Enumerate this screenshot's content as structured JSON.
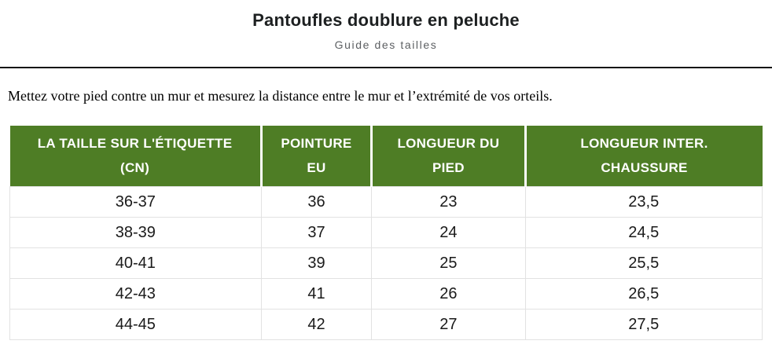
{
  "header": {
    "title": "Pantoufles doublure en peluche",
    "subtitle": "Guide des tailles"
  },
  "instruction": "Mettez votre pied contre un mur et mesurez la distance entre le mur et l’extrémité de vos orteils.",
  "table": {
    "headers": [
      {
        "line1": "LA TAILLE SUR L'ÉTIQUETTE",
        "line2": "(CN)"
      },
      {
        "line1": "POINTURE",
        "line2": "EU"
      },
      {
        "line1": "LONGUEUR DU",
        "line2": "PIED"
      },
      {
        "line1": "LONGUEUR INTER.",
        "line2": "CHAUSSURE"
      }
    ],
    "rows": [
      [
        "36-37",
        "36",
        "23",
        "23,5"
      ],
      [
        "38-39",
        "37",
        "24",
        "24,5"
      ],
      [
        "40-41",
        "39",
        "25",
        "25,5"
      ],
      [
        "42-43",
        "41",
        "26",
        "26,5"
      ],
      [
        "44-45",
        "42",
        "27",
        "27,5"
      ]
    ]
  },
  "colors": {
    "header_bg": "#4e7d25",
    "header_text": "#ffffff",
    "divider": "#141414",
    "row_border": "#e2e2e2",
    "title_text": "#1d2021",
    "subtitle_text": "#5c5f62",
    "cell_text": "#1a1a1a"
  }
}
